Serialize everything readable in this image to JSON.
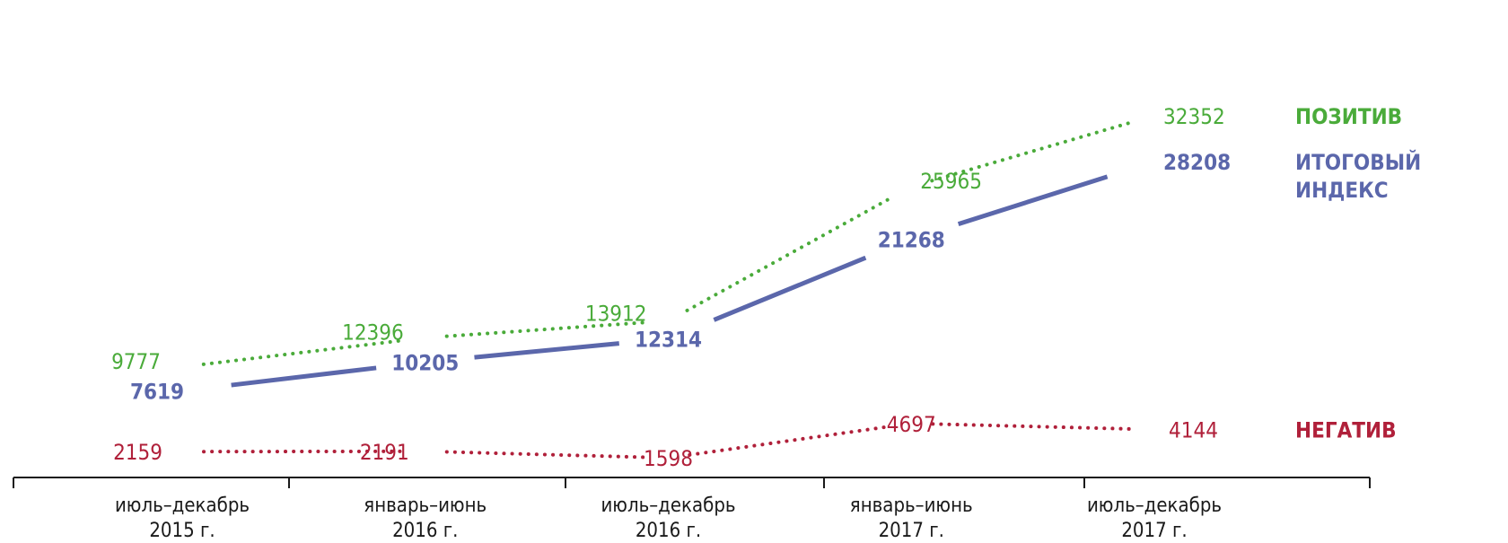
{
  "colors": {
    "positive": "#4aab3a",
    "index": "#5b67ab",
    "negative": "#b0203a",
    "axis": "#1a1a1a"
  },
  "chart_data": {
    "type": "line",
    "categories": [
      [
        "июль–декабрь",
        "2015 г."
      ],
      [
        "январь–июнь",
        "2016 г."
      ],
      [
        "июль–декабрь",
        "2016 г."
      ],
      [
        "январь–июнь",
        "2017 г."
      ],
      [
        "июль–декабрь",
        "2017 г."
      ]
    ],
    "ylim": [
      0,
      35000
    ],
    "grid": false,
    "legend_position": "right",
    "series": [
      {
        "key": "positive",
        "name_lines": [
          "ПОЗИТИВ"
        ],
        "values": [
          9777,
          12396,
          13912,
          25965,
          32352
        ],
        "style": "dotted"
      },
      {
        "key": "index",
        "name_lines": [
          "ИТОГОВЫЙ",
          "ИНДЕКС"
        ],
        "values": [
          7619,
          10205,
          12314,
          21268,
          28208
        ],
        "style": "solid"
      },
      {
        "key": "negative",
        "name_lines": [
          "НЕГАТИВ"
        ],
        "values": [
          2159,
          2191,
          1598,
          4697,
          4144
        ],
        "style": "dotted"
      }
    ]
  }
}
